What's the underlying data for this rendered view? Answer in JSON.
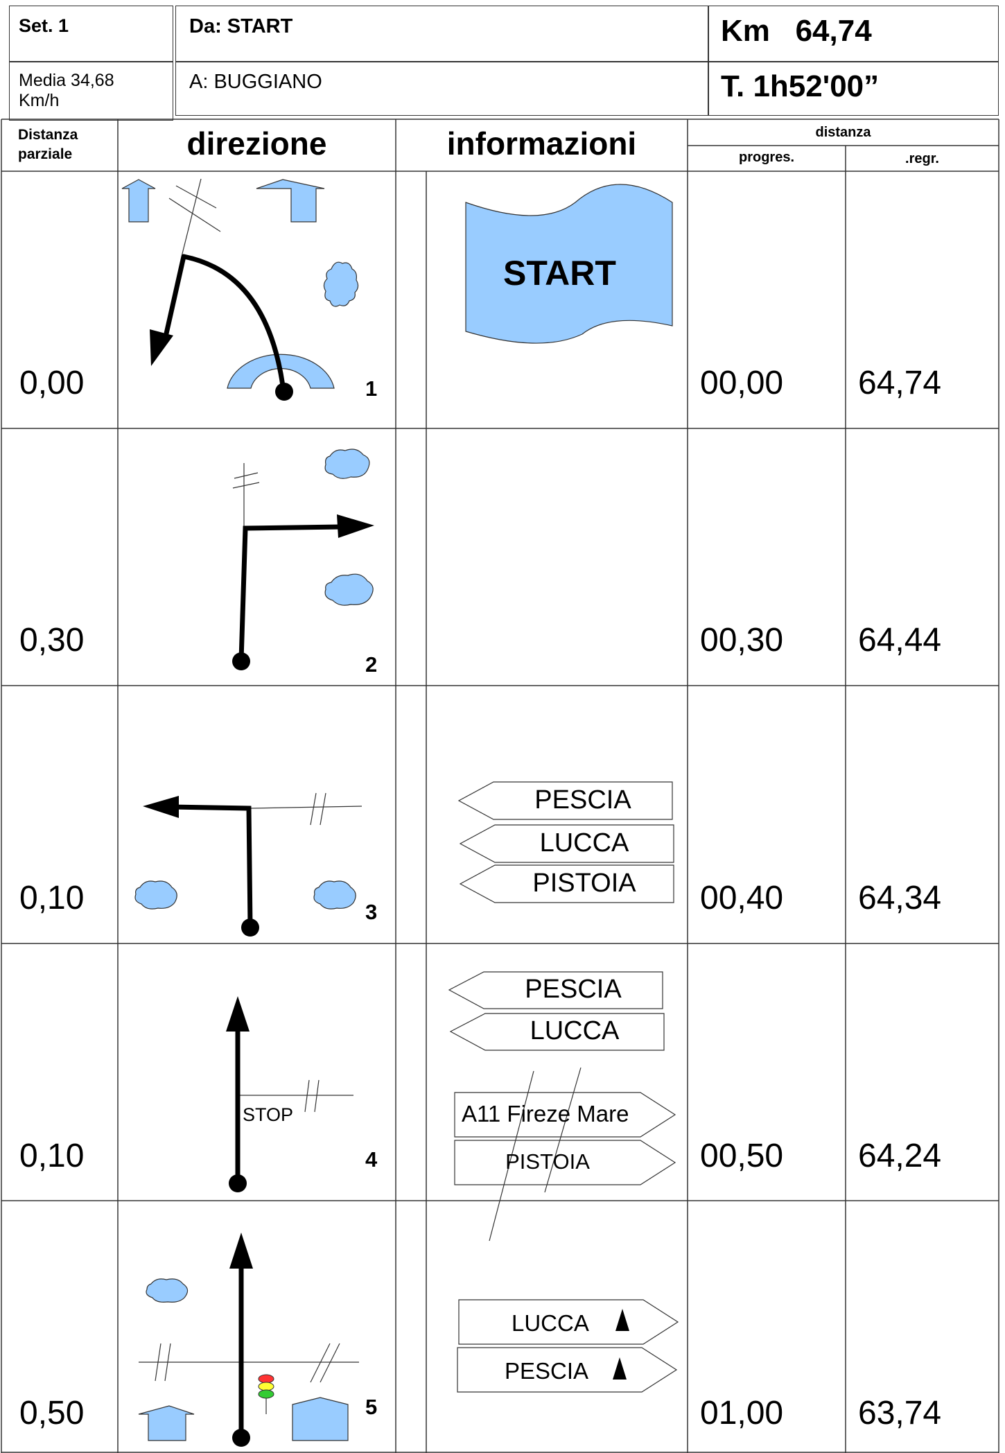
{
  "header": {
    "set_label": "Set. 1",
    "media_line1": "Media 34,68",
    "media_line2": "Km/h",
    "from_label": "Da: START",
    "to_label": "A:   BUGGIANO",
    "km_label": "Km   64,74",
    "time_label": "T. 1h52'00”"
  },
  "columns": {
    "partial_line1": "Distanza",
    "partial_line2": "parziale",
    "direction": "direzione",
    "info": "informazioni",
    "distance_group": "distanza",
    "progressive": "progres.",
    "regressive": ".regr."
  },
  "rows": [
    {
      "step": "1",
      "partial": "0,00",
      "progressive": "00,00",
      "regressive": "64,74",
      "banner": "START",
      "signs": []
    },
    {
      "step": "2",
      "partial": "0,30",
      "progressive": "00,30",
      "regressive": "64,44",
      "signs": []
    },
    {
      "step": "3",
      "partial": "0,10",
      "progressive": "00,40",
      "regressive": "64,34",
      "signs": [
        "PESCIA",
        "LUCCA",
        "PISTOIA"
      ]
    },
    {
      "step": "4",
      "partial": "0,10",
      "progressive": "00,50",
      "regressive": "64,24",
      "stop": "STOP",
      "signs": [
        "PESCIA",
        "LUCCA",
        "A11 Fireze Mare",
        "PISTOIA"
      ]
    },
    {
      "step": "5",
      "partial": "0,50",
      "progressive": "01,00",
      "regressive": "63,74",
      "signs": [
        "LUCCA",
        "PESCIA"
      ]
    }
  ],
  "colors": {
    "accent_blue": "#99ccff",
    "line": "#333333",
    "traffic_red": "#ff3333",
    "traffic_yellow": "#ffff33",
    "traffic_green": "#33cc33"
  }
}
